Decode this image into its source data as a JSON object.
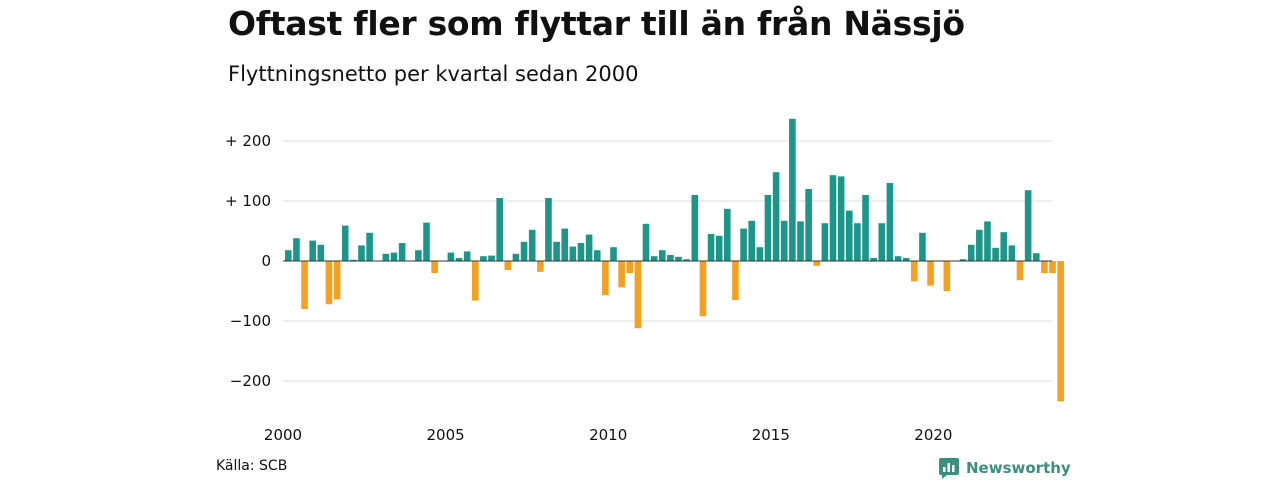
{
  "header": {
    "title": "Oftast fler som flyttar till än från Nässjö",
    "subtitle": "Flyttningsnetto per kvartal sedan 2000"
  },
  "footer": {
    "source": "Källa: SCB",
    "brand": "Newsworthy"
  },
  "colors": {
    "positive": "#1b9688",
    "negative": "#f5a01f",
    "grid": "#dddddd",
    "brand": "#3a8f7f"
  },
  "chart_data": {
    "type": "bar",
    "xlabel": "",
    "ylabel": "",
    "ylim": [
      -250,
      250
    ],
    "grid": true,
    "y_ticks": [
      {
        "value": 200,
        "label": "+ 200"
      },
      {
        "value": 100,
        "label": "+ 100"
      },
      {
        "value": 0,
        "label": "0"
      },
      {
        "value": -100,
        "label": "−100"
      },
      {
        "value": -200,
        "label": "−200"
      }
    ],
    "x_ticks": [
      {
        "value": 2000,
        "label": "2000"
      },
      {
        "value": 2005,
        "label": "2005"
      },
      {
        "value": 2010,
        "label": "2010"
      },
      {
        "value": 2015,
        "label": "2015"
      },
      {
        "value": 2020,
        "label": "2020"
      }
    ],
    "categories": [
      "2000 Q1",
      "2000 Q2",
      "2000 Q3",
      "2000 Q4",
      "2001 Q1",
      "2001 Q2",
      "2001 Q3",
      "2001 Q4",
      "2002 Q1",
      "2002 Q2",
      "2002 Q3",
      "2002 Q4",
      "2003 Q1",
      "2003 Q2",
      "2003 Q3",
      "2003 Q4",
      "2004 Q1",
      "2004 Q2",
      "2004 Q3",
      "2004 Q4",
      "2005 Q1",
      "2005 Q2",
      "2005 Q3",
      "2005 Q4",
      "2006 Q1",
      "2006 Q2",
      "2006 Q3",
      "2006 Q4",
      "2007 Q1",
      "2007 Q2",
      "2007 Q3",
      "2007 Q4",
      "2008 Q1",
      "2008 Q2",
      "2008 Q3",
      "2008 Q4",
      "2009 Q1",
      "2009 Q2",
      "2009 Q3",
      "2009 Q4",
      "2010 Q1",
      "2010 Q2",
      "2010 Q3",
      "2010 Q4",
      "2011 Q1",
      "2011 Q2",
      "2011 Q3",
      "2011 Q4",
      "2012 Q1",
      "2012 Q2",
      "2012 Q3",
      "2012 Q4",
      "2013 Q1",
      "2013 Q2",
      "2013 Q3",
      "2013 Q4",
      "2014 Q1",
      "2014 Q2",
      "2014 Q3",
      "2014 Q4",
      "2015 Q1",
      "2015 Q2",
      "2015 Q3",
      "2015 Q4",
      "2016 Q1",
      "2016 Q2",
      "2016 Q3",
      "2016 Q4",
      "2017 Q1",
      "2017 Q2",
      "2017 Q3",
      "2017 Q4",
      "2018 Q1",
      "2018 Q2",
      "2018 Q3",
      "2018 Q4",
      "2019 Q1",
      "2019 Q2",
      "2019 Q3",
      "2019 Q4",
      "2020 Q1",
      "2020 Q2",
      "2020 Q3",
      "2020 Q4",
      "2021 Q1",
      "2021 Q2",
      "2021 Q3",
      "2021 Q4",
      "2022 Q1",
      "2022 Q2",
      "2022 Q3",
      "2022 Q4",
      "2023 Q1",
      "2023 Q2",
      "2023 Q3",
      "2023 Q4"
    ],
    "values": [
      18,
      38,
      -80,
      34,
      27,
      -72,
      -64,
      59,
      2,
      26,
      47,
      0,
      12,
      14,
      30,
      0,
      18,
      64,
      -20,
      0,
      14,
      5,
      16,
      -66,
      8,
      9,
      105,
      -15,
      12,
      32,
      52,
      -18,
      105,
      32,
      54,
      24,
      30,
      44,
      18,
      -57,
      23,
      -44,
      -20,
      -112,
      62,
      8,
      18,
      10,
      7,
      3,
      110,
      -92,
      45,
      42,
      87,
      -65,
      54,
      67,
      23,
      110,
      148,
      67,
      237,
      66,
      120,
      -8,
      63,
      143,
      141,
      84,
      63,
      110,
      5,
      63,
      130,
      8,
      5,
      -34,
      47,
      -41,
      0,
      -50,
      0,
      3,
      27,
      52,
      66,
      22,
      48,
      26,
      -32,
      118,
      13,
      -20,
      -20,
      -234
    ]
  }
}
